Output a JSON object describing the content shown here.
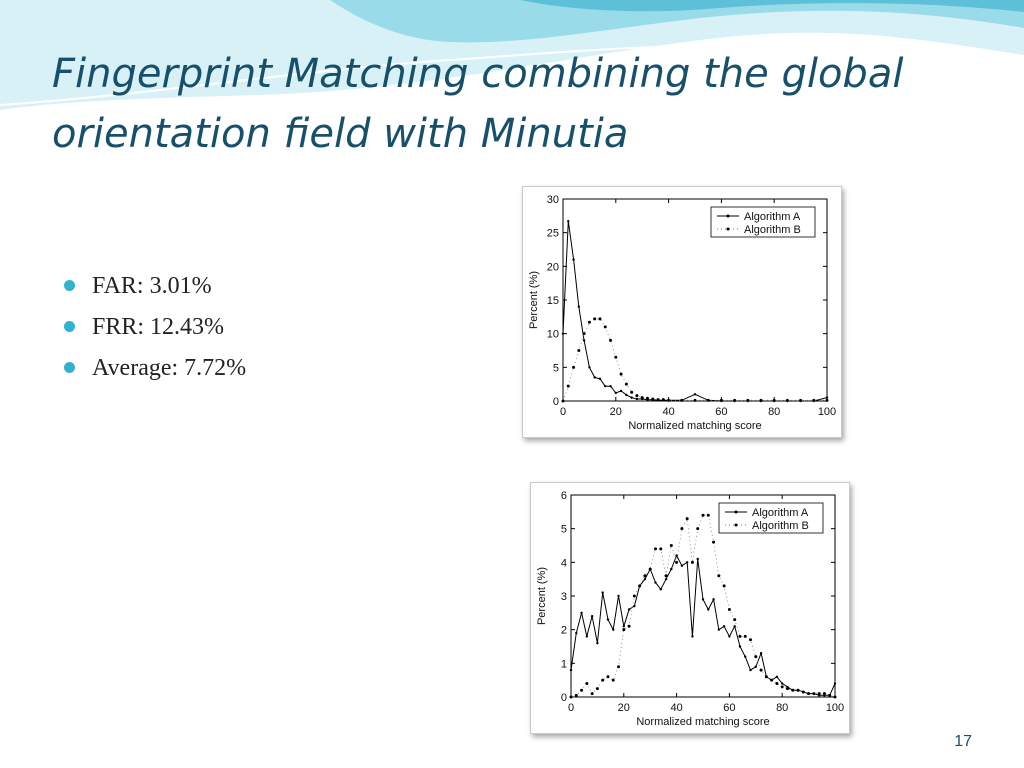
{
  "slide": {
    "title": "Fingerprint Matching combining the global orientation field with Minutia",
    "bullets": [
      "FAR: 3.01%",
      "FRR: 12.43%",
      "Average: 7.72%"
    ],
    "page_number": "17"
  },
  "colors": {
    "title": "#17506a",
    "bullet": "#31b3cf",
    "wave": "#7fd0e4",
    "series": "#000000"
  },
  "chart_data": [
    {
      "type": "line",
      "title": "",
      "xlabel": "Normalized matching score",
      "ylabel": "Percent (%)",
      "xlim": [
        0,
        100
      ],
      "ylim": [
        0,
        30
      ],
      "xticks": [
        0,
        20,
        40,
        60,
        80,
        100
      ],
      "yticks": [
        0,
        5,
        10,
        15,
        20,
        25,
        30
      ],
      "legend": "top-right",
      "grid": false,
      "series": [
        {
          "name": "Algorithm A",
          "style": "solid",
          "x": [
            0,
            2,
            4,
            6,
            8,
            10,
            12,
            14,
            16,
            18,
            20,
            22,
            24,
            26,
            28,
            30,
            32,
            34,
            36,
            38,
            40,
            45,
            50,
            55,
            60,
            65,
            70,
            75,
            80,
            85,
            90,
            95,
            100
          ],
          "y": [
            10,
            26.7,
            21,
            14,
            9,
            5,
            3.5,
            3.3,
            2.2,
            2.2,
            1.2,
            1.5,
            0.9,
            0.5,
            0.3,
            0.3,
            0.2,
            0.2,
            0.1,
            0.1,
            0.1,
            0.1,
            1,
            0.1,
            0,
            0,
            0,
            0,
            0,
            0,
            0,
            0,
            0.5
          ]
        },
        {
          "name": "Algorithm B",
          "style": "dotted",
          "x": [
            0,
            2,
            4,
            6,
            8,
            10,
            12,
            14,
            16,
            18,
            20,
            22,
            24,
            26,
            28,
            30,
            32,
            34,
            36,
            38,
            40,
            45,
            50,
            55,
            60,
            65,
            70,
            75,
            80,
            85,
            90,
            95,
            100
          ],
          "y": [
            0,
            2.2,
            5,
            7.5,
            10,
            11.7,
            12.2,
            12.2,
            11,
            9,
            6.5,
            4,
            2.5,
            1.3,
            0.8,
            0.5,
            0.4,
            0.3,
            0.2,
            0.2,
            0.1,
            0.1,
            0.1,
            0.1,
            0.1,
            0.1,
            0.1,
            0.1,
            0.1,
            0.1,
            0.1,
            0.1,
            0.1
          ]
        }
      ]
    },
    {
      "type": "line",
      "title": "",
      "xlabel": "Normalized matching score",
      "ylabel": "Percent (%)",
      "xlim": [
        0,
        100
      ],
      "ylim": [
        0,
        6
      ],
      "xticks": [
        0,
        20,
        40,
        60,
        80,
        100
      ],
      "yticks": [
        0,
        1,
        2,
        3,
        4,
        5,
        6
      ],
      "legend": "top-right",
      "grid": false,
      "series": [
        {
          "name": "Algorithm A",
          "style": "solid",
          "x": [
            0,
            2,
            4,
            6,
            8,
            10,
            12,
            14,
            16,
            18,
            20,
            22,
            24,
            26,
            28,
            30,
            32,
            34,
            36,
            38,
            40,
            42,
            44,
            46,
            48,
            50,
            52,
            54,
            56,
            58,
            60,
            62,
            64,
            66,
            68,
            70,
            72,
            74,
            76,
            78,
            80,
            82,
            84,
            86,
            88,
            90,
            92,
            94,
            96,
            98,
            100
          ],
          "y": [
            0.8,
            1.9,
            2.5,
            1.8,
            2.4,
            1.6,
            3.1,
            2.3,
            2.0,
            3.0,
            2.1,
            2.6,
            2.7,
            3.3,
            3.5,
            3.8,
            3.4,
            3.2,
            3.5,
            3.8,
            4.2,
            3.9,
            4.0,
            1.8,
            4.1,
            2.9,
            2.6,
            2.9,
            2.0,
            2.1,
            1.8,
            2.1,
            1.5,
            1.2,
            0.8,
            0.9,
            1.3,
            0.6,
            0.5,
            0.6,
            0.4,
            0.3,
            0.2,
            0.2,
            0.15,
            0.1,
            0.1,
            0.05,
            0.05,
            0.05,
            0.4
          ]
        },
        {
          "name": "Algorithm B",
          "style": "dotted",
          "x": [
            0,
            2,
            4,
            6,
            8,
            10,
            12,
            14,
            16,
            18,
            20,
            22,
            24,
            26,
            28,
            30,
            32,
            34,
            36,
            38,
            40,
            42,
            44,
            46,
            48,
            50,
            52,
            54,
            56,
            58,
            60,
            62,
            64,
            66,
            68,
            70,
            72,
            74,
            76,
            78,
            80,
            82,
            84,
            86,
            88,
            90,
            92,
            94,
            96,
            98,
            100
          ],
          "y": [
            0,
            0.05,
            0.2,
            0.4,
            0.1,
            0.25,
            0.5,
            0.6,
            0.5,
            0.9,
            2.0,
            2.1,
            3.0,
            3.3,
            3.6,
            3.8,
            4.4,
            4.4,
            3.6,
            4.5,
            4.0,
            5.0,
            5.3,
            4.0,
            5.0,
            5.4,
            5.4,
            4.6,
            3.6,
            3.3,
            2.6,
            2.3,
            1.8,
            1.8,
            1.7,
            1.2,
            0.8,
            0.6,
            0.5,
            0.4,
            0.3,
            0.25,
            0.2,
            0.2,
            0.15,
            0.1,
            0.1,
            0.1,
            0.1,
            0.05,
            0
          ]
        }
      ]
    }
  ]
}
